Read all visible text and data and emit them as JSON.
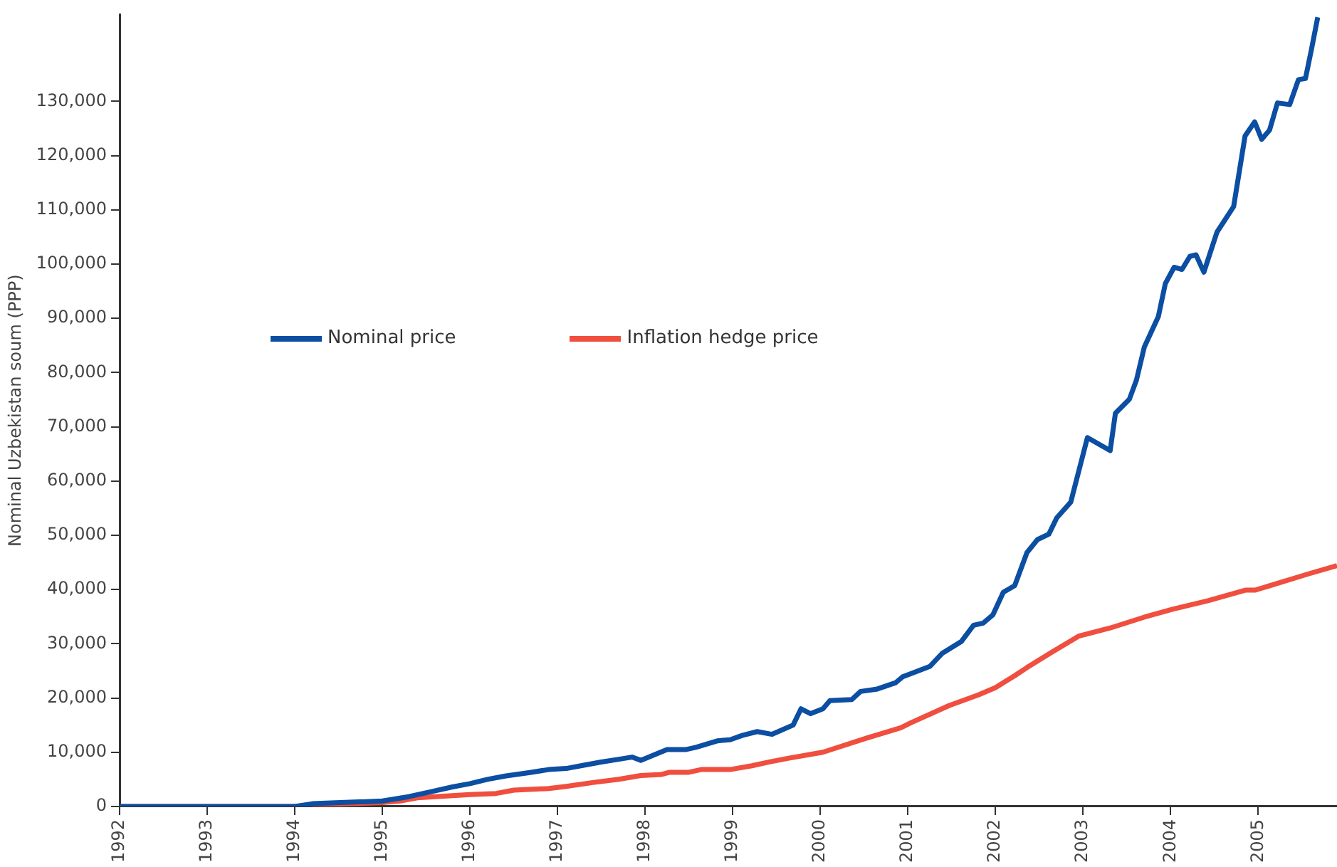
{
  "chart_data": {
    "type": "line",
    "ylabel": "Nominal Uzbekistan soum (PPP)",
    "xlim": [
      1992,
      2005.9
    ],
    "xticks": [
      1992,
      1993,
      1994,
      1995,
      1996,
      1997,
      1998,
      1999,
      2000,
      2001,
      2002,
      2003,
      2004,
      2005
    ],
    "ylim": [
      0,
      146000
    ],
    "yticks": [
      0,
      {
        "value": 10000,
        "label": "10,000"
      },
      {
        "value": 20000,
        "label": "20,000"
      },
      {
        "value": 30000,
        "label": "30,000"
      },
      {
        "value": 40000,
        "label": "40,000"
      },
      {
        "value": 50000,
        "label": "50,000"
      },
      {
        "value": 60000,
        "label": "60,000"
      },
      {
        "value": 70000,
        "label": "70,000"
      },
      {
        "value": 80000,
        "label": "80,000"
      },
      {
        "value": 90000,
        "label": "90,000"
      },
      {
        "value": 100000,
        "label": "100,000"
      },
      {
        "value": 110000,
        "label": "110,000"
      },
      {
        "value": 120000,
        "label": "120,000"
      },
      {
        "value": 130000,
        "label": "130,000"
      }
    ],
    "grid": false,
    "legend": "left",
    "marker": "none",
    "line_style": "solid",
    "series": [
      {
        "name": "Nominal price",
        "color": "#0b4ea2",
        "x": [
          1992,
          1994,
          1994.2,
          1995,
          1995.3,
          1995.55,
          1995.8,
          1996,
          1996.2,
          1996.4,
          1996.7,
          1996.9,
          1997.1,
          1997.3,
          1997.5,
          1997.7,
          1997.85,
          1997.95,
          1998.25,
          1998.47,
          1998.58,
          1998.83,
          1998.97,
          1999.11,
          1999.28,
          1999.45,
          1999.69,
          1999.78,
          1999.89,
          2000.03,
          2000.11,
          2000.36,
          2000.46,
          2000.64,
          2000.86,
          2000.94,
          2001.25,
          2001.39,
          2001.61,
          2001.75,
          2001.86,
          2001.97,
          2002.09,
          2002.22,
          2002.36,
          2002.48,
          2002.61,
          2002.7,
          2002.86,
          2003.05,
          2003.31,
          2003.37,
          2003.53,
          2003.61,
          2003.7,
          2003.86,
          2003.94,
          2004.04,
          2004.13,
          2004.22,
          2004.29,
          2004.38,
          2004.53,
          2004.72,
          2004.85,
          2004.96,
          2005.04,
          2005.13,
          2005.22,
          2005.36,
          2005.46,
          2005.54,
          2005.61,
          2005.68
        ],
        "values": [
          0,
          0,
          500,
          1000,
          1800,
          2700,
          3600,
          4200,
          5000,
          5600,
          6300,
          6800,
          7000,
          7600,
          8200,
          8700,
          9100,
          8500,
          10500,
          10500,
          10900,
          12100,
          12300,
          13100,
          13800,
          13300,
          15000,
          18000,
          17100,
          18000,
          19500,
          19700,
          21200,
          21600,
          22800,
          23900,
          25800,
          28200,
          30400,
          33400,
          33800,
          35300,
          39500,
          40700,
          46800,
          49200,
          50200,
          53200,
          56100,
          68000,
          65600,
          72500,
          75100,
          78600,
          84700,
          90300,
          96400,
          99400,
          99000,
          101400,
          101700,
          98500,
          105900,
          110600,
          123600,
          126200,
          123000,
          124700,
          129700,
          129400,
          134000,
          134200,
          139700,
          145500
        ]
      },
      {
        "name": "Inflation hedge price",
        "color": "#f04e3e",
        "x": [
          1992,
          1994,
          1994.2,
          1995,
          1995.2,
          1995.4,
          1996,
          1996.3,
          1996.5,
          1996.9,
          1997.1,
          1997.4,
          1997.7,
          1997.95,
          1998.19,
          1998.28,
          1998.5,
          1998.64,
          1998.97,
          1999.22,
          1999.42,
          1999.64,
          2000.03,
          2000.53,
          2000.92,
          2001.03,
          2001.47,
          2001.81,
          2002,
          2002.22,
          2002.36,
          2002.64,
          2002.95,
          2003.31,
          2003.7,
          2004.03,
          2004.42,
          2004.86,
          2004.97,
          2005.58,
          2005.9
        ],
        "values": [
          0,
          0,
          300,
          700,
          1000,
          1600,
          2200,
          2400,
          3000,
          3300,
          3700,
          4400,
          5000,
          5700,
          5900,
          6300,
          6300,
          6800,
          6800,
          7500,
          8200,
          8900,
          10000,
          12600,
          14500,
          15400,
          18600,
          20600,
          21900,
          24100,
          25600,
          28400,
          31400,
          32900,
          34900,
          36400,
          37900,
          39900,
          39900,
          42900,
          44400
        ]
      }
    ]
  }
}
